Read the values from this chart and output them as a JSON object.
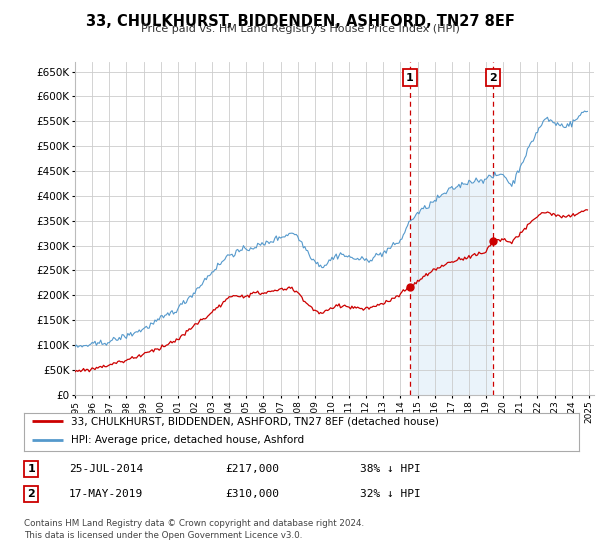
{
  "title": "33, CHULKHURST, BIDDENDEN, ASHFORD, TN27 8EF",
  "subtitle": "Price paid vs. HM Land Registry's House Price Index (HPI)",
  "background_color": "#ffffff",
  "plot_bg_color": "#ffffff",
  "grid_color": "#cccccc",
  "hpi_color": "#5599cc",
  "hpi_fill_color": "#d6e8f7",
  "price_color": "#cc0000",
  "dashed_line_color": "#cc0000",
  "ylim": [
    0,
    670000
  ],
  "yticks": [
    0,
    50000,
    100000,
    150000,
    200000,
    250000,
    300000,
    350000,
    400000,
    450000,
    500000,
    550000,
    600000,
    650000
  ],
  "ytick_labels": [
    "£0",
    "£50K",
    "£100K",
    "£150K",
    "£200K",
    "£250K",
    "£300K",
    "£350K",
    "£400K",
    "£450K",
    "£500K",
    "£550K",
    "£600K",
    "£650K"
  ],
  "sale1_year": 2014.56,
  "sale1_price": 217000,
  "sale2_year": 2019.38,
  "sale2_price": 310000,
  "legend_line1": "33, CHULKHURST, BIDDENDEN, ASHFORD, TN27 8EF (detached house)",
  "legend_line2": "HPI: Average price, detached house, Ashford",
  "footer": "Contains HM Land Registry data © Crown copyright and database right 2024.\nThis data is licensed under the Open Government Licence v3.0."
}
